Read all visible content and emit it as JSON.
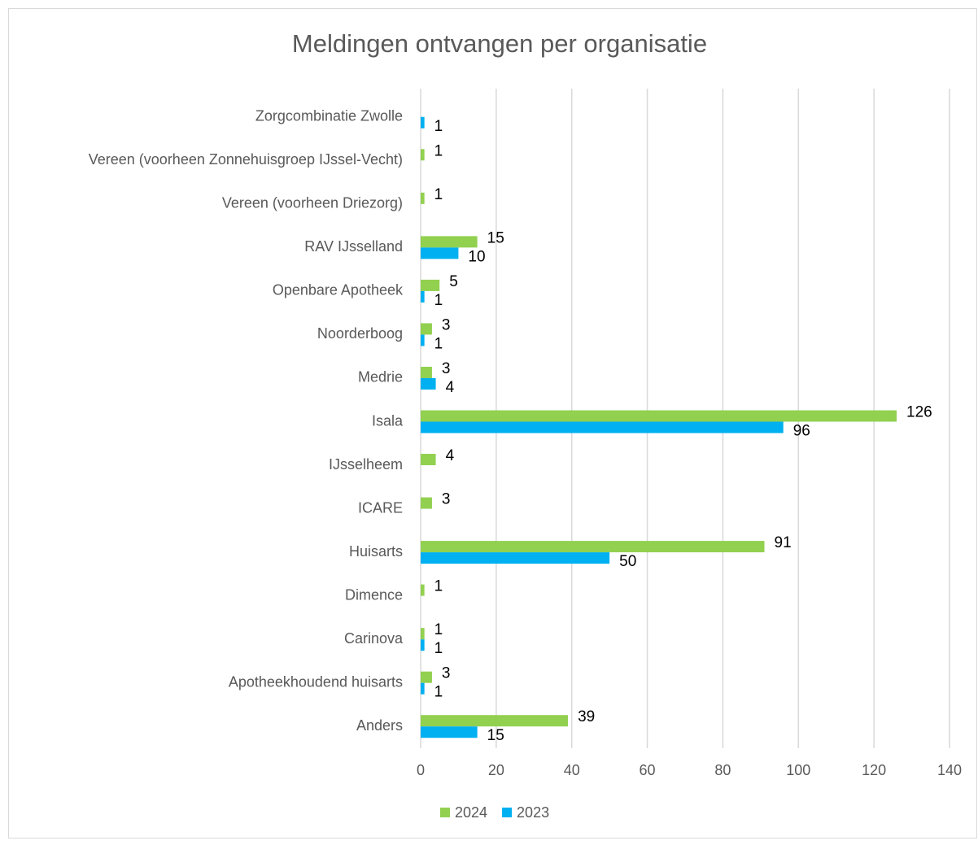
{
  "chart_data": {
    "type": "hbar",
    "title": "Meldingen ontvangen per organisatie",
    "categories": [
      "Zorgcombinatie Zwolle",
      "Vereen (voorheen Zonnehuisgroep IJssel-Vecht)",
      "Vereen (voorheen Driezorg)",
      "RAV IJsselland",
      "Openbare Apotheek",
      "Noorderboog",
      "Medrie",
      "Isala",
      "IJsselheem",
      "ICARE",
      "Huisarts",
      "Dimence",
      "Carinova",
      "Apotheekhoudend huisarts",
      "Anders"
    ],
    "series": [
      {
        "name": "2024",
        "color": "#92d050",
        "values": [
          null,
          1,
          1,
          15,
          5,
          3,
          3,
          126,
          4,
          3,
          91,
          1,
          1,
          3,
          39
        ]
      },
      {
        "name": "2023",
        "color": "#00b0f0",
        "values": [
          1,
          null,
          null,
          10,
          1,
          1,
          4,
          96,
          null,
          null,
          50,
          null,
          1,
          1,
          15
        ]
      }
    ],
    "xlim": [
      0,
      140
    ],
    "xticks": [
      0,
      20,
      40,
      60,
      80,
      100,
      120,
      140
    ],
    "grid": true,
    "legend": "bottom"
  }
}
